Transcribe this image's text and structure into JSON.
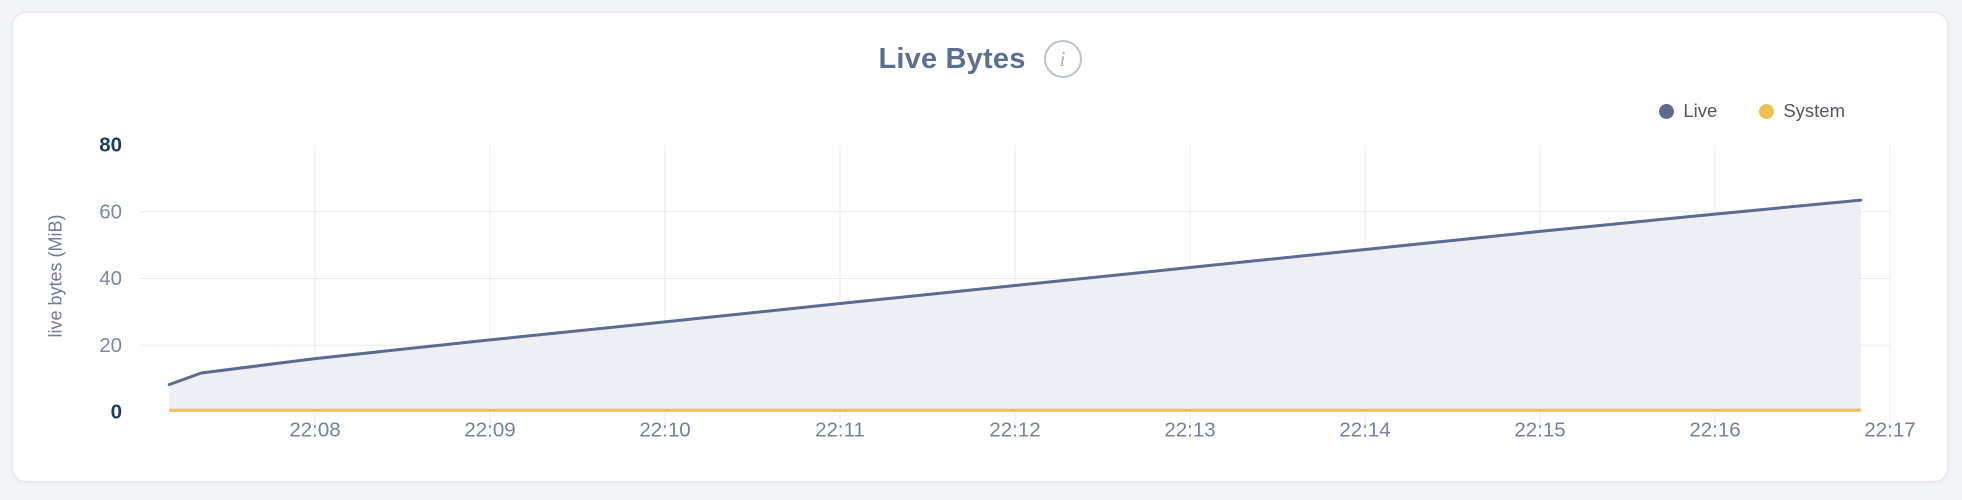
{
  "header": {
    "title": "Live Bytes"
  },
  "legend": {
    "items": [
      {
        "label": "Live",
        "color": "#5d6c8e"
      },
      {
        "label": "System",
        "color": "#eec051"
      }
    ]
  },
  "chart_data": {
    "type": "area",
    "title": "Live Bytes",
    "xlabel": "",
    "ylabel": "live bytes (MiB)",
    "ylim": [
      0,
      80
    ],
    "y_ticks": [
      0,
      20,
      40,
      60,
      80
    ],
    "y_ticks_emphasized": [
      0,
      80
    ],
    "x_ticks": [
      "22:08",
      "22:09",
      "22:10",
      "22:11",
      "22:12",
      "22:13",
      "22:14",
      "22:15",
      "22:16",
      "22:17"
    ],
    "grid": true,
    "legend_position": "top-right",
    "colors": {
      "gridline": "#e9eaee",
      "y_tick_bold": "#1e3d64",
      "y_tick_light": "#7b89a4",
      "x_tick": "#73829e",
      "area_fill": "#edeff4"
    },
    "series": [
      {
        "name": "Live",
        "color": "#5d6c8e",
        "fill": "#edeff4",
        "unit": "MiB",
        "points": [
          [
            "22:07:10",
            8.2
          ],
          [
            "22:07:21",
            11.7
          ],
          [
            "22:08:00",
            16.0
          ],
          [
            "22:09:00",
            21.6
          ],
          [
            "22:10:00",
            27.0
          ],
          [
            "22:11:00",
            32.5
          ],
          [
            "22:12:00",
            37.9
          ],
          [
            "22:13:00",
            43.3
          ],
          [
            "22:14:00",
            48.7
          ],
          [
            "22:15:00",
            54.1
          ],
          [
            "22:16:00",
            59.3
          ],
          [
            "22:16:50",
            63.5
          ]
        ]
      },
      {
        "name": "System",
        "color": "#eec051",
        "fill": "none",
        "unit": "MiB",
        "points": [
          [
            "22:07:10",
            0.5
          ],
          [
            "22:16:50",
            0.5
          ]
        ]
      }
    ]
  }
}
